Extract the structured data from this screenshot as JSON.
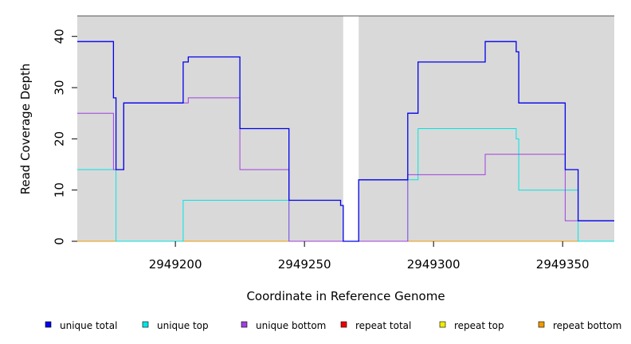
{
  "chart_data": {
    "type": "line",
    "step": true,
    "xlabel": "Coordinate in Reference Genome",
    "ylabel": "Read Coverage Depth",
    "xlim": [
      2949162,
      2949370
    ],
    "ylim": [
      0,
      44
    ],
    "xticks": [
      2949200,
      2949250,
      2949300,
      2949350
    ],
    "yticks": [
      0,
      10,
      20,
      30,
      40
    ],
    "background": "#d9d9d9",
    "gap": [
      2949265,
      2949271
    ],
    "legend_position": "bottom",
    "series": [
      {
        "name": "unique total",
        "color": "#0000ee",
        "points": [
          [
            2949162,
            39
          ],
          [
            2949176,
            39
          ],
          [
            2949176,
            28
          ],
          [
            2949177,
            28
          ],
          [
            2949177,
            14
          ],
          [
            2949180,
            14
          ],
          [
            2949180,
            27
          ],
          [
            2949203,
            27
          ],
          [
            2949203,
            35
          ],
          [
            2949205,
            35
          ],
          [
            2949205,
            36
          ],
          [
            2949225,
            36
          ],
          [
            2949225,
            22
          ],
          [
            2949244,
            22
          ],
          [
            2949244,
            8
          ],
          [
            2949264,
            8
          ],
          [
            2949264,
            7
          ],
          [
            2949265,
            7
          ],
          [
            2949265,
            0
          ],
          [
            2949271,
            0
          ],
          [
            2949271,
            12
          ],
          [
            2949290,
            12
          ],
          [
            2949290,
            25
          ],
          [
            2949294,
            25
          ],
          [
            2949294,
            35
          ],
          [
            2949320,
            35
          ],
          [
            2949320,
            39
          ],
          [
            2949332,
            39
          ],
          [
            2949332,
            37
          ],
          [
            2949333,
            37
          ],
          [
            2949333,
            27
          ],
          [
            2949351,
            27
          ],
          [
            2949351,
            14
          ],
          [
            2949356,
            14
          ],
          [
            2949356,
            4
          ],
          [
            2949370,
            4
          ]
        ]
      },
      {
        "name": "unique top",
        "color": "#00e5e5",
        "points": [
          [
            2949162,
            14
          ],
          [
            2949177,
            14
          ],
          [
            2949177,
            0
          ],
          [
            2949203,
            0
          ],
          [
            2949203,
            8
          ],
          [
            2949244,
            8
          ],
          [
            2949244,
            0
          ],
          [
            2949290,
            0
          ],
          [
            2949290,
            12
          ],
          [
            2949294,
            12
          ],
          [
            2949294,
            22
          ],
          [
            2949332,
            22
          ],
          [
            2949332,
            20
          ],
          [
            2949333,
            20
          ],
          [
            2949333,
            10
          ],
          [
            2949356,
            10
          ],
          [
            2949356,
            0
          ],
          [
            2949370,
            0
          ]
        ]
      },
      {
        "name": "unique bottom",
        "color": "#a040e0",
        "points": [
          [
            2949162,
            25
          ],
          [
            2949176,
            25
          ],
          [
            2949176,
            14
          ],
          [
            2949180,
            14
          ],
          [
            2949180,
            27
          ],
          [
            2949203,
            27
          ],
          [
            2949205,
            27
          ],
          [
            2949205,
            28
          ],
          [
            2949225,
            28
          ],
          [
            2949225,
            14
          ],
          [
            2949244,
            14
          ],
          [
            2949244,
            0
          ],
          [
            2949290,
            0
          ],
          [
            2949290,
            13
          ],
          [
            2949320,
            13
          ],
          [
            2949320,
            17
          ],
          [
            2949351,
            17
          ],
          [
            2949351,
            4
          ],
          [
            2949370,
            4
          ]
        ]
      },
      {
        "name": "repeat total",
        "color": "#ee0000",
        "points": [
          [
            2949162,
            0
          ],
          [
            2949370,
            0
          ]
        ]
      },
      {
        "name": "repeat top",
        "color": "#eeee00",
        "points": [
          [
            2949162,
            0
          ],
          [
            2949370,
            0
          ]
        ]
      },
      {
        "name": "repeat bottom",
        "color": "#ee9a00",
        "points": [
          [
            2949162,
            0
          ],
          [
            2949370,
            0
          ]
        ]
      }
    ]
  }
}
